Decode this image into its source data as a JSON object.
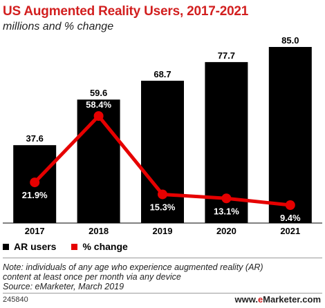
{
  "chart_data": {
    "type": "bar",
    "title": "US Augmented Reality Users, 2017-2021",
    "subtitle": "millions and % change",
    "categories": [
      "2017",
      "2018",
      "2019",
      "2020",
      "2021"
    ],
    "series": [
      {
        "name": "AR users",
        "type": "bar",
        "values": [
          37.6,
          59.6,
          68.7,
          77.7,
          85.0
        ],
        "labels": [
          "37.6",
          "59.6",
          "68.7",
          "77.7",
          "85.0"
        ],
        "color": "#000000"
      },
      {
        "name": "% change",
        "type": "line",
        "values": [
          21.9,
          58.4,
          15.3,
          13.1,
          9.4
        ],
        "labels": [
          "21.9%",
          "58.4%",
          "15.3%",
          "13.1%",
          "9.4%"
        ],
        "color": "#e60000"
      }
    ],
    "grid": false,
    "legend_position": "bottom-left"
  },
  "legend": {
    "bar_label": "AR users",
    "line_label": "% change"
  },
  "note": {
    "line1": "Note: individuals of any age who experience augmented reality (AR)",
    "line2": "content at least once per month via any device",
    "source": "Source: eMarketer, March 2019"
  },
  "footer": {
    "id": "245840",
    "brand_prefix": "www.",
    "brand_e": "e",
    "brand_rest": "Marketer",
    "brand_suffix": ".com"
  },
  "colors": {
    "title": "#d21f1f",
    "bar": "#000000",
    "line": "#e60000"
  }
}
